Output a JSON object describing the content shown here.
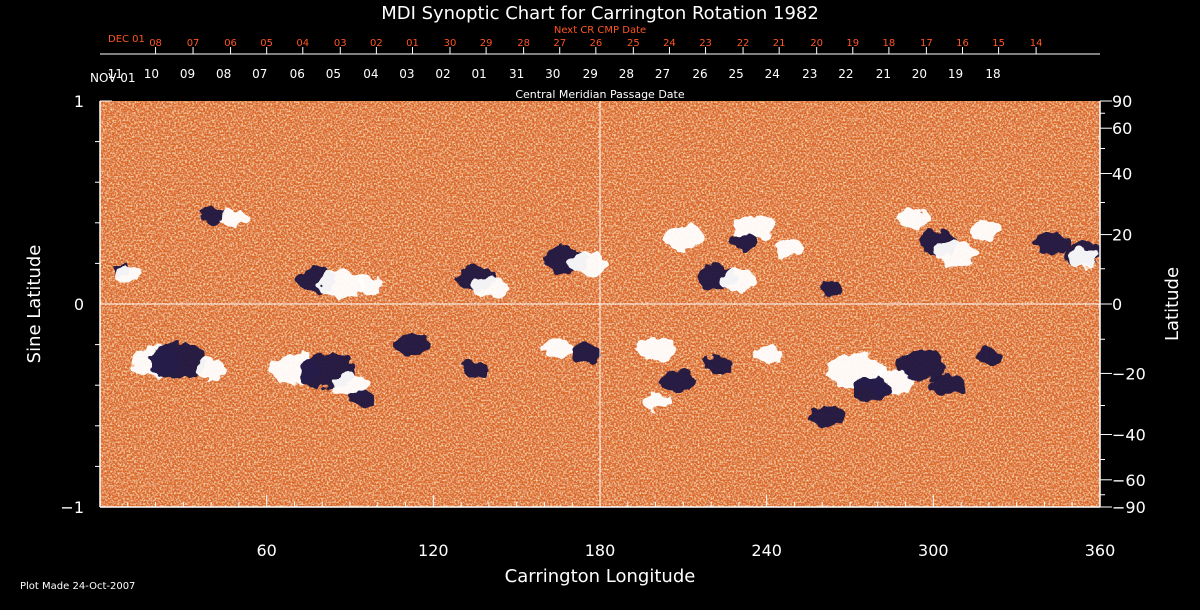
{
  "chart_data": {
    "type": "heatmap",
    "title": "MDI Synoptic Chart for Carrington Rotation 1982",
    "xlabel": "Carrington Longitude",
    "ylabel_left": "Sine Latitude",
    "ylabel_right": "Latitude",
    "xlim": [
      0,
      360
    ],
    "ylim": [
      -1,
      1
    ],
    "x_ticks": [
      60,
      120,
      180,
      240,
      300,
      360
    ],
    "y_ticks_left": [
      {
        "value": 1,
        "label": "1"
      },
      {
        "value": 0,
        "label": "0"
      },
      {
        "value": -1,
        "label": "−1"
      }
    ],
    "y_ticks_right": [
      {
        "deg": 90,
        "label": "90"
      },
      {
        "deg": 60,
        "label": "60"
      },
      {
        "deg": 40,
        "label": "40"
      },
      {
        "deg": 20,
        "label": "20"
      },
      {
        "deg": 0,
        "label": "0"
      },
      {
        "deg": -20,
        "label": "−20"
      },
      {
        "deg": -40,
        "label": "−40"
      },
      {
        "deg": -60,
        "label": "−60"
      },
      {
        "deg": -90,
        "label": "−90"
      }
    ],
    "cmp_axis": {
      "label": "Central Meridian Passage Date",
      "start_label": "NOV 01",
      "days": [
        {
          "lon": 354.5,
          "label": "11"
        },
        {
          "lon": 341.5,
          "label": "10"
        },
        {
          "lon": 328.5,
          "label": "09"
        },
        {
          "lon": 315.5,
          "label": "08"
        },
        {
          "lon": 302.5,
          "label": "07"
        },
        {
          "lon": 289,
          "label": "06"
        },
        {
          "lon": 276,
          "label": "05"
        },
        {
          "lon": 262.5,
          "label": "04"
        },
        {
          "lon": 249.5,
          "label": "03"
        },
        {
          "lon": 236.5,
          "label": "02"
        },
        {
          "lon": 223.5,
          "label": "01"
        },
        {
          "lon": 210,
          "label": "31"
        },
        {
          "lon": 197,
          "label": "30"
        },
        {
          "lon": 183.5,
          "label": "29"
        },
        {
          "lon": 170.5,
          "label": "28"
        },
        {
          "lon": 157.5,
          "label": "27"
        },
        {
          "lon": 144,
          "label": "26"
        },
        {
          "lon": 131,
          "label": "25"
        },
        {
          "lon": 118,
          "label": "24"
        },
        {
          "lon": 104.5,
          "label": "23"
        },
        {
          "lon": 91.5,
          "label": "22"
        },
        {
          "lon": 78,
          "label": "21"
        },
        {
          "lon": 65,
          "label": "20"
        },
        {
          "lon": 52,
          "label": "19"
        },
        {
          "lon": 38.5,
          "label": "18"
        }
      ]
    },
    "next_cr_axis": {
      "label": "Next CR CMP Date",
      "start_label": "DEC 01",
      "days": [
        {
          "lon": 340,
          "label": "08"
        },
        {
          "lon": 326.5,
          "label": "07"
        },
        {
          "lon": 313,
          "label": "06"
        },
        {
          "lon": 300,
          "label": "05"
        },
        {
          "lon": 287,
          "label": "04"
        },
        {
          "lon": 273.5,
          "label": "03"
        },
        {
          "lon": 260.5,
          "label": "02"
        },
        {
          "lon": 247.5,
          "label": "01"
        },
        {
          "lon": 234,
          "label": "30"
        },
        {
          "lon": 221,
          "label": "29"
        },
        {
          "lon": 207.5,
          "label": "28"
        },
        {
          "lon": 194.5,
          "label": "27"
        },
        {
          "lon": 181.5,
          "label": "26"
        },
        {
          "lon": 168,
          "label": "25"
        },
        {
          "lon": 155,
          "label": "24"
        },
        {
          "lon": 142,
          "label": "23"
        },
        {
          "lon": 128.5,
          "label": "22"
        },
        {
          "lon": 115.5,
          "label": "21"
        },
        {
          "lon": 102,
          "label": "20"
        },
        {
          "lon": 89,
          "label": "19"
        },
        {
          "lon": 76,
          "label": "18"
        },
        {
          "lon": 62.5,
          "label": "17"
        },
        {
          "lon": 49.5,
          "label": "16"
        },
        {
          "lon": 36.5,
          "label": "15"
        },
        {
          "lon": 23,
          "label": "14"
        }
      ]
    },
    "grid": "crosshair at longitude 180 and latitude 0",
    "colormap": {
      "background": "#e06a28",
      "positive": "#ffffff",
      "negative": "#1a1340",
      "speckle_dark": "#a02810",
      "speckle_light": "#ffb060"
    },
    "regions": [
      {
        "lon": 8,
        "lat": 0.17,
        "polarity": "negative",
        "size": 0.4
      },
      {
        "lon": 10,
        "lat": 0.15,
        "polarity": "positive",
        "size": 0.5
      },
      {
        "lon": 40,
        "lat": 0.44,
        "polarity": "negative",
        "size": 0.6
      },
      {
        "lon": 48,
        "lat": 0.42,
        "polarity": "positive",
        "size": 0.6
      },
      {
        "lon": 78,
        "lat": 0.12,
        "polarity": "negative",
        "size": 0.9
      },
      {
        "lon": 87,
        "lat": 0.1,
        "polarity": "positive",
        "size": 1.0
      },
      {
        "lon": 97,
        "lat": 0.1,
        "polarity": "positive",
        "size": 0.6
      },
      {
        "lon": 135,
        "lat": 0.13,
        "polarity": "negative",
        "size": 0.9
      },
      {
        "lon": 141,
        "lat": 0.08,
        "polarity": "positive",
        "size": 0.8
      },
      {
        "lon": 168,
        "lat": 0.22,
        "polarity": "negative",
        "size": 1.0
      },
      {
        "lon": 176,
        "lat": 0.2,
        "polarity": "positive",
        "size": 0.9
      },
      {
        "lon": 210,
        "lat": 0.33,
        "polarity": "positive",
        "size": 0.9
      },
      {
        "lon": 222,
        "lat": 0.13,
        "polarity": "negative",
        "size": 0.9
      },
      {
        "lon": 230,
        "lat": 0.12,
        "polarity": "positive",
        "size": 0.8
      },
      {
        "lon": 235,
        "lat": 0.38,
        "polarity": "positive",
        "size": 0.9
      },
      {
        "lon": 232,
        "lat": 0.3,
        "polarity": "negative",
        "size": 0.6
      },
      {
        "lon": 248,
        "lat": 0.28,
        "polarity": "positive",
        "size": 0.7
      },
      {
        "lon": 263,
        "lat": 0.07,
        "polarity": "negative",
        "size": 0.5
      },
      {
        "lon": 293,
        "lat": 0.42,
        "polarity": "positive",
        "size": 0.7
      },
      {
        "lon": 302,
        "lat": 0.3,
        "polarity": "negative",
        "size": 0.9
      },
      {
        "lon": 308,
        "lat": 0.25,
        "polarity": "positive",
        "size": 1.0
      },
      {
        "lon": 318,
        "lat": 0.36,
        "polarity": "positive",
        "size": 0.7
      },
      {
        "lon": 342,
        "lat": 0.3,
        "polarity": "negative",
        "size": 0.8
      },
      {
        "lon": 354,
        "lat": 0.25,
        "polarity": "negative",
        "size": 0.9
      },
      {
        "lon": 354,
        "lat": 0.23,
        "polarity": "positive",
        "size": 0.7
      },
      {
        "lon": 20,
        "lat": -0.28,
        "polarity": "positive",
        "size": 1.1
      },
      {
        "lon": 28,
        "lat": -0.28,
        "polarity": "negative",
        "size": 1.3
      },
      {
        "lon": 40,
        "lat": -0.32,
        "polarity": "positive",
        "size": 0.7
      },
      {
        "lon": 70,
        "lat": -0.32,
        "polarity": "positive",
        "size": 1.1
      },
      {
        "lon": 82,
        "lat": -0.33,
        "polarity": "negative",
        "size": 1.3
      },
      {
        "lon": 90,
        "lat": -0.4,
        "polarity": "positive",
        "size": 0.8
      },
      {
        "lon": 95,
        "lat": -0.46,
        "polarity": "negative",
        "size": 0.6
      },
      {
        "lon": 112,
        "lat": -0.2,
        "polarity": "negative",
        "size": 0.8
      },
      {
        "lon": 135,
        "lat": -0.32,
        "polarity": "negative",
        "size": 0.6
      },
      {
        "lon": 165,
        "lat": -0.22,
        "polarity": "positive",
        "size": 0.7
      },
      {
        "lon": 175,
        "lat": -0.24,
        "polarity": "negative",
        "size": 0.7
      },
      {
        "lon": 200,
        "lat": -0.22,
        "polarity": "positive",
        "size": 0.9
      },
      {
        "lon": 208,
        "lat": -0.38,
        "polarity": "negative",
        "size": 0.8
      },
      {
        "lon": 200,
        "lat": -0.48,
        "polarity": "positive",
        "size": 0.6
      },
      {
        "lon": 222,
        "lat": -0.3,
        "polarity": "negative",
        "size": 0.7
      },
      {
        "lon": 240,
        "lat": -0.25,
        "polarity": "positive",
        "size": 0.6
      },
      {
        "lon": 262,
        "lat": -0.55,
        "polarity": "negative",
        "size": 0.8
      },
      {
        "lon": 272,
        "lat": -0.33,
        "polarity": "positive",
        "size": 1.3
      },
      {
        "lon": 285,
        "lat": -0.38,
        "polarity": "positive",
        "size": 1.0
      },
      {
        "lon": 278,
        "lat": -0.42,
        "polarity": "negative",
        "size": 0.9
      },
      {
        "lon": 296,
        "lat": -0.3,
        "polarity": "negative",
        "size": 1.1
      },
      {
        "lon": 305,
        "lat": -0.4,
        "polarity": "negative",
        "size": 0.8
      },
      {
        "lon": 320,
        "lat": -0.26,
        "polarity": "negative",
        "size": 0.6
      }
    ]
  },
  "footer": {
    "plot_made": "Plot Made 24-Oct-2007"
  }
}
